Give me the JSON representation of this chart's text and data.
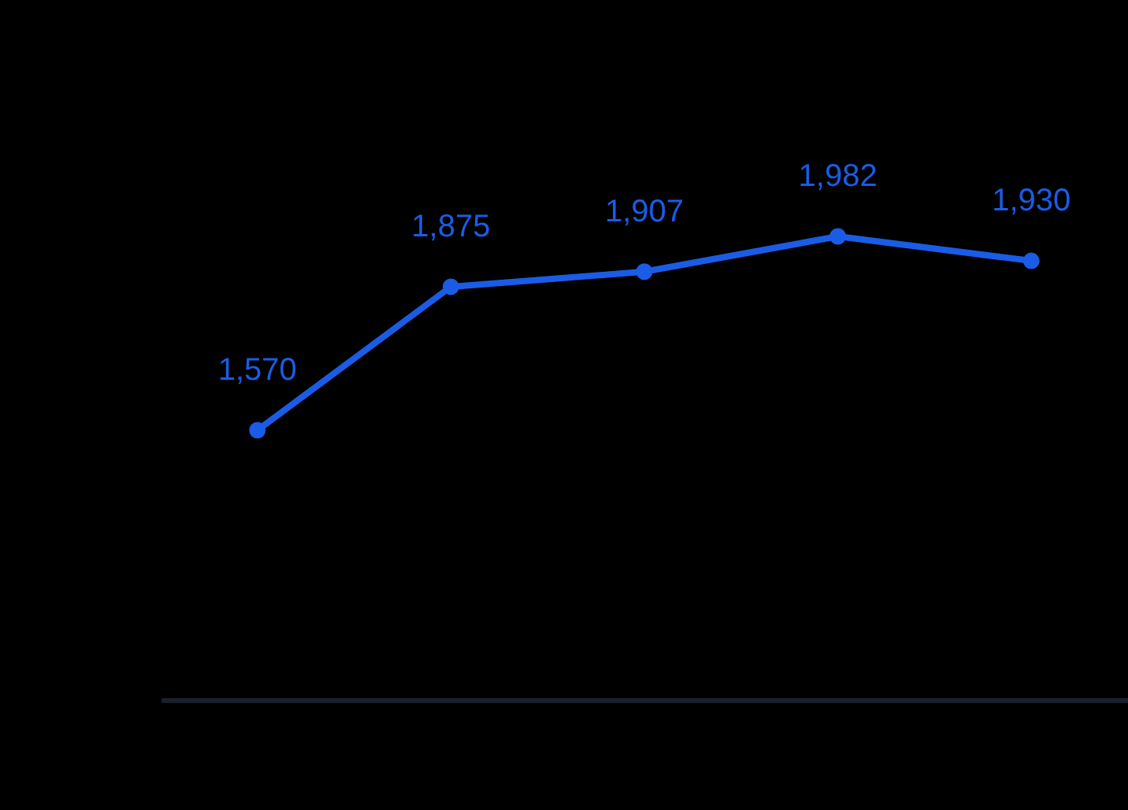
{
  "chart_data": {
    "type": "line",
    "categories": [
      null,
      null,
      null,
      null,
      null
    ],
    "series": [
      {
        "color": "#1a5ce6",
        "values": [
          1570,
          1875,
          1907,
          1982,
          1930
        ],
        "value_labels": [
          "1,570",
          "1,875",
          "1,907",
          "1,982",
          "1,930"
        ]
      }
    ],
    "marker": "circle",
    "line_style": "solid"
  }
}
